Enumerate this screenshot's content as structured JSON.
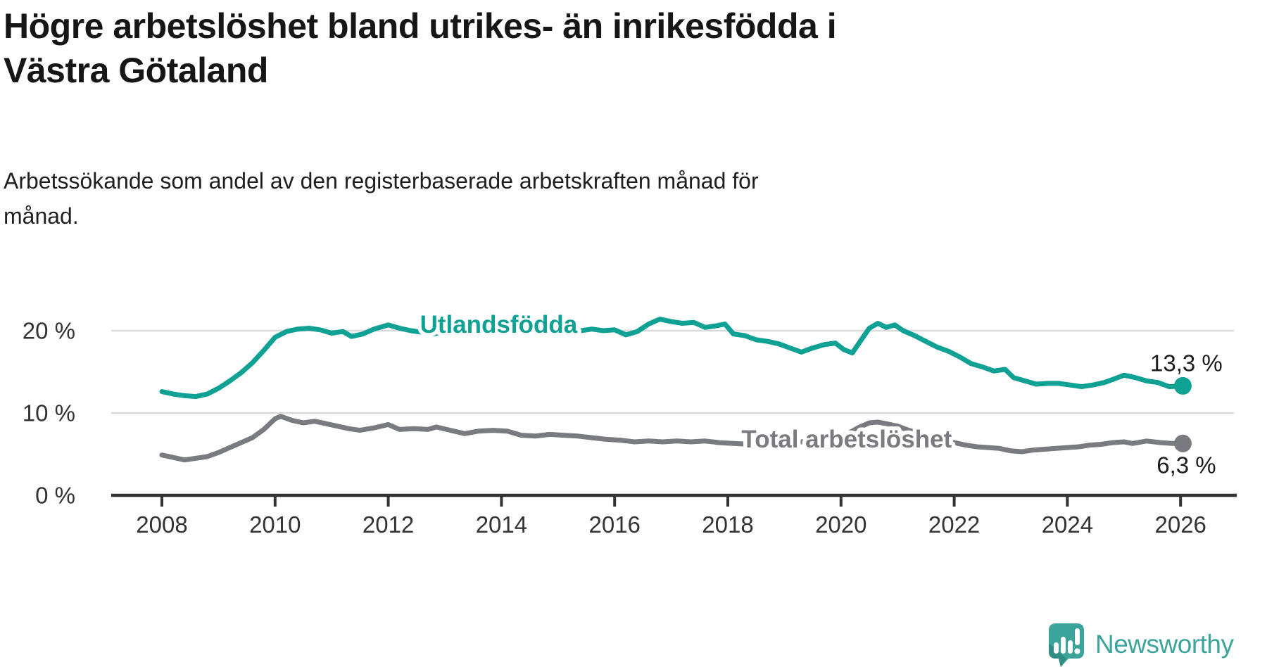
{
  "header": {
    "title_lines": [
      "Högre arbetslöshet bland utrikes- än inrikesfödda i",
      "Västra Götaland"
    ],
    "subtitle_lines": [
      "Arbetssökande som andel av den registerbaserade arbetskraften månad för",
      "månad."
    ]
  },
  "chart_data": {
    "type": "line",
    "title": "Högre arbetslöshet bland utrikes- än inrikesfödda i Västra Götaland",
    "subtitle": "Arbetssökande som andel av den registerbaserade arbetskraften månad för månad.",
    "unit": "%",
    "grid": true,
    "legend_position": "inline-labels",
    "x_axis": {
      "tick_years": [
        2008,
        2010,
        2012,
        2014,
        2016,
        2018,
        2020,
        2022,
        2024,
        2026
      ],
      "min_year": 2007.1,
      "max_year": 2027.0
    },
    "y_axis": {
      "min": 0,
      "max": 22,
      "ticks": [
        {
          "value": 20,
          "label": "20 %",
          "gridline": true
        },
        {
          "value": 10,
          "label": "10 %",
          "gridline": true
        },
        {
          "value": 0,
          "label": "0 %",
          "gridline": false
        }
      ]
    },
    "series": [
      {
        "name": "Total arbetslöshet",
        "color": "#7a7b80",
        "end_label": "6,3 %",
        "end_value": 6.3,
        "label_anchor": {
          "year": 2020.1,
          "value": 5.8
        },
        "points": [
          [
            2008.0,
            4.9
          ],
          [
            2008.2,
            4.6
          ],
          [
            2008.4,
            4.3
          ],
          [
            2008.6,
            4.5
          ],
          [
            2008.8,
            4.7
          ],
          [
            2009.0,
            5.2
          ],
          [
            2009.2,
            5.8
          ],
          [
            2009.4,
            6.4
          ],
          [
            2009.6,
            7.0
          ],
          [
            2009.8,
            8.0
          ],
          [
            2010.0,
            9.3
          ],
          [
            2010.1,
            9.6
          ],
          [
            2010.3,
            9.1
          ],
          [
            2010.5,
            8.8
          ],
          [
            2010.7,
            9.0
          ],
          [
            2010.9,
            8.7
          ],
          [
            2011.1,
            8.4
          ],
          [
            2011.3,
            8.1
          ],
          [
            2011.5,
            7.9
          ],
          [
            2011.75,
            8.2
          ],
          [
            2012.0,
            8.6
          ],
          [
            2012.2,
            8.0
          ],
          [
            2012.45,
            8.1
          ],
          [
            2012.7,
            8.0
          ],
          [
            2012.85,
            8.3
          ],
          [
            2013.1,
            7.9
          ],
          [
            2013.35,
            7.5
          ],
          [
            2013.6,
            7.8
          ],
          [
            2013.85,
            7.9
          ],
          [
            2014.1,
            7.8
          ],
          [
            2014.35,
            7.3
          ],
          [
            2014.6,
            7.2
          ],
          [
            2014.85,
            7.4
          ],
          [
            2015.1,
            7.3
          ],
          [
            2015.35,
            7.2
          ],
          [
            2015.6,
            7.0
          ],
          [
            2015.85,
            6.8
          ],
          [
            2016.1,
            6.7
          ],
          [
            2016.35,
            6.5
          ],
          [
            2016.6,
            6.6
          ],
          [
            2016.85,
            6.5
          ],
          [
            2017.1,
            6.6
          ],
          [
            2017.35,
            6.5
          ],
          [
            2017.6,
            6.6
          ],
          [
            2017.85,
            6.4
          ],
          [
            2018.1,
            6.3
          ],
          [
            2018.4,
            6.2
          ],
          [
            2018.7,
            6.3
          ],
          [
            2019.0,
            6.4
          ],
          [
            2019.3,
            6.5
          ],
          [
            2019.6,
            6.7
          ],
          [
            2019.9,
            7.0
          ],
          [
            2020.1,
            7.4
          ],
          [
            2020.3,
            8.2
          ],
          [
            2020.5,
            8.8
          ],
          [
            2020.65,
            8.9
          ],
          [
            2020.8,
            8.7
          ],
          [
            2021.0,
            8.4
          ],
          [
            2021.2,
            7.9
          ],
          [
            2021.4,
            7.5
          ],
          [
            2021.6,
            7.1
          ],
          [
            2021.8,
            6.8
          ],
          [
            2022.0,
            6.4
          ],
          [
            2022.2,
            6.1
          ],
          [
            2022.4,
            5.9
          ],
          [
            2022.6,
            5.8
          ],
          [
            2022.8,
            5.7
          ],
          [
            2023.0,
            5.4
          ],
          [
            2023.2,
            5.3
          ],
          [
            2023.4,
            5.5
          ],
          [
            2023.6,
            5.6
          ],
          [
            2023.8,
            5.7
          ],
          [
            2024.0,
            5.8
          ],
          [
            2024.2,
            5.9
          ],
          [
            2024.4,
            6.1
          ],
          [
            2024.6,
            6.2
          ],
          [
            2024.8,
            6.4
          ],
          [
            2025.0,
            6.5
          ],
          [
            2025.15,
            6.3
          ],
          [
            2025.4,
            6.6
          ],
          [
            2025.65,
            6.4
          ],
          [
            2025.85,
            6.3
          ],
          [
            2026.04,
            6.3
          ]
        ]
      },
      {
        "name": "Utlandsfödda",
        "color": "#0fa193",
        "end_label": "13,3 %",
        "end_value": 13.3,
        "label_anchor": {
          "year": 2013.95,
          "value": 19.75
        },
        "points": [
          [
            2008.0,
            12.6
          ],
          [
            2008.2,
            12.3
          ],
          [
            2008.4,
            12.1
          ],
          [
            2008.6,
            12.0
          ],
          [
            2008.8,
            12.3
          ],
          [
            2009.0,
            13.0
          ],
          [
            2009.2,
            13.9
          ],
          [
            2009.4,
            14.9
          ],
          [
            2009.6,
            16.1
          ],
          [
            2009.8,
            17.6
          ],
          [
            2010.0,
            19.2
          ],
          [
            2010.2,
            19.9
          ],
          [
            2010.4,
            20.2
          ],
          [
            2010.6,
            20.3
          ],
          [
            2010.8,
            20.1
          ],
          [
            2011.0,
            19.7
          ],
          [
            2011.2,
            19.9
          ],
          [
            2011.35,
            19.3
          ],
          [
            2011.55,
            19.6
          ],
          [
            2011.75,
            20.2
          ],
          [
            2012.0,
            20.7
          ],
          [
            2012.2,
            20.3
          ],
          [
            2012.4,
            20.0
          ],
          [
            2012.6,
            19.8
          ],
          [
            2012.8,
            19.6
          ],
          [
            2013.0,
            19.9
          ],
          [
            2013.2,
            20.2
          ],
          [
            2013.4,
            20.0
          ],
          [
            2013.6,
            19.8
          ],
          [
            2013.8,
            20.0
          ],
          [
            2014.0,
            20.2
          ],
          [
            2014.2,
            20.0
          ],
          [
            2014.4,
            19.8
          ],
          [
            2014.6,
            19.9
          ],
          [
            2014.8,
            20.0
          ],
          [
            2015.0,
            20.1
          ],
          [
            2015.2,
            19.9
          ],
          [
            2015.4,
            20.0
          ],
          [
            2015.6,
            20.2
          ],
          [
            2015.8,
            20.0
          ],
          [
            2016.0,
            20.1
          ],
          [
            2016.2,
            19.5
          ],
          [
            2016.4,
            19.9
          ],
          [
            2016.6,
            20.8
          ],
          [
            2016.8,
            21.4
          ],
          [
            2017.0,
            21.1
          ],
          [
            2017.2,
            20.9
          ],
          [
            2017.4,
            21.0
          ],
          [
            2017.6,
            20.4
          ],
          [
            2017.8,
            20.6
          ],
          [
            2017.95,
            20.8
          ],
          [
            2018.1,
            19.6
          ],
          [
            2018.3,
            19.4
          ],
          [
            2018.5,
            18.9
          ],
          [
            2018.7,
            18.7
          ],
          [
            2018.9,
            18.4
          ],
          [
            2019.1,
            17.9
          ],
          [
            2019.3,
            17.4
          ],
          [
            2019.5,
            17.9
          ],
          [
            2019.7,
            18.3
          ],
          [
            2019.9,
            18.5
          ],
          [
            2020.05,
            17.7
          ],
          [
            2020.2,
            17.3
          ],
          [
            2020.35,
            18.8
          ],
          [
            2020.5,
            20.3
          ],
          [
            2020.65,
            20.9
          ],
          [
            2020.8,
            20.4
          ],
          [
            2020.95,
            20.7
          ],
          [
            2021.1,
            20.0
          ],
          [
            2021.3,
            19.4
          ],
          [
            2021.5,
            18.7
          ],
          [
            2021.7,
            18.0
          ],
          [
            2021.9,
            17.5
          ],
          [
            2022.1,
            16.8
          ],
          [
            2022.3,
            16.0
          ],
          [
            2022.5,
            15.6
          ],
          [
            2022.7,
            15.1
          ],
          [
            2022.9,
            15.3
          ],
          [
            2023.05,
            14.3
          ],
          [
            2023.25,
            13.9
          ],
          [
            2023.45,
            13.5
          ],
          [
            2023.65,
            13.6
          ],
          [
            2023.85,
            13.6
          ],
          [
            2024.05,
            13.4
          ],
          [
            2024.25,
            13.2
          ],
          [
            2024.45,
            13.4
          ],
          [
            2024.65,
            13.7
          ],
          [
            2024.85,
            14.2
          ],
          [
            2025.0,
            14.6
          ],
          [
            2025.2,
            14.3
          ],
          [
            2025.4,
            13.9
          ],
          [
            2025.6,
            13.7
          ],
          [
            2025.8,
            13.2
          ],
          [
            2026.04,
            13.3
          ]
        ]
      }
    ]
  },
  "colors": {
    "grid": "#dadada",
    "axis": "#333333",
    "tick_label": "#333333",
    "value_label": "#1a1a1a"
  },
  "branding": {
    "wordmark": "Newsworthy",
    "color": "#3da49b"
  }
}
